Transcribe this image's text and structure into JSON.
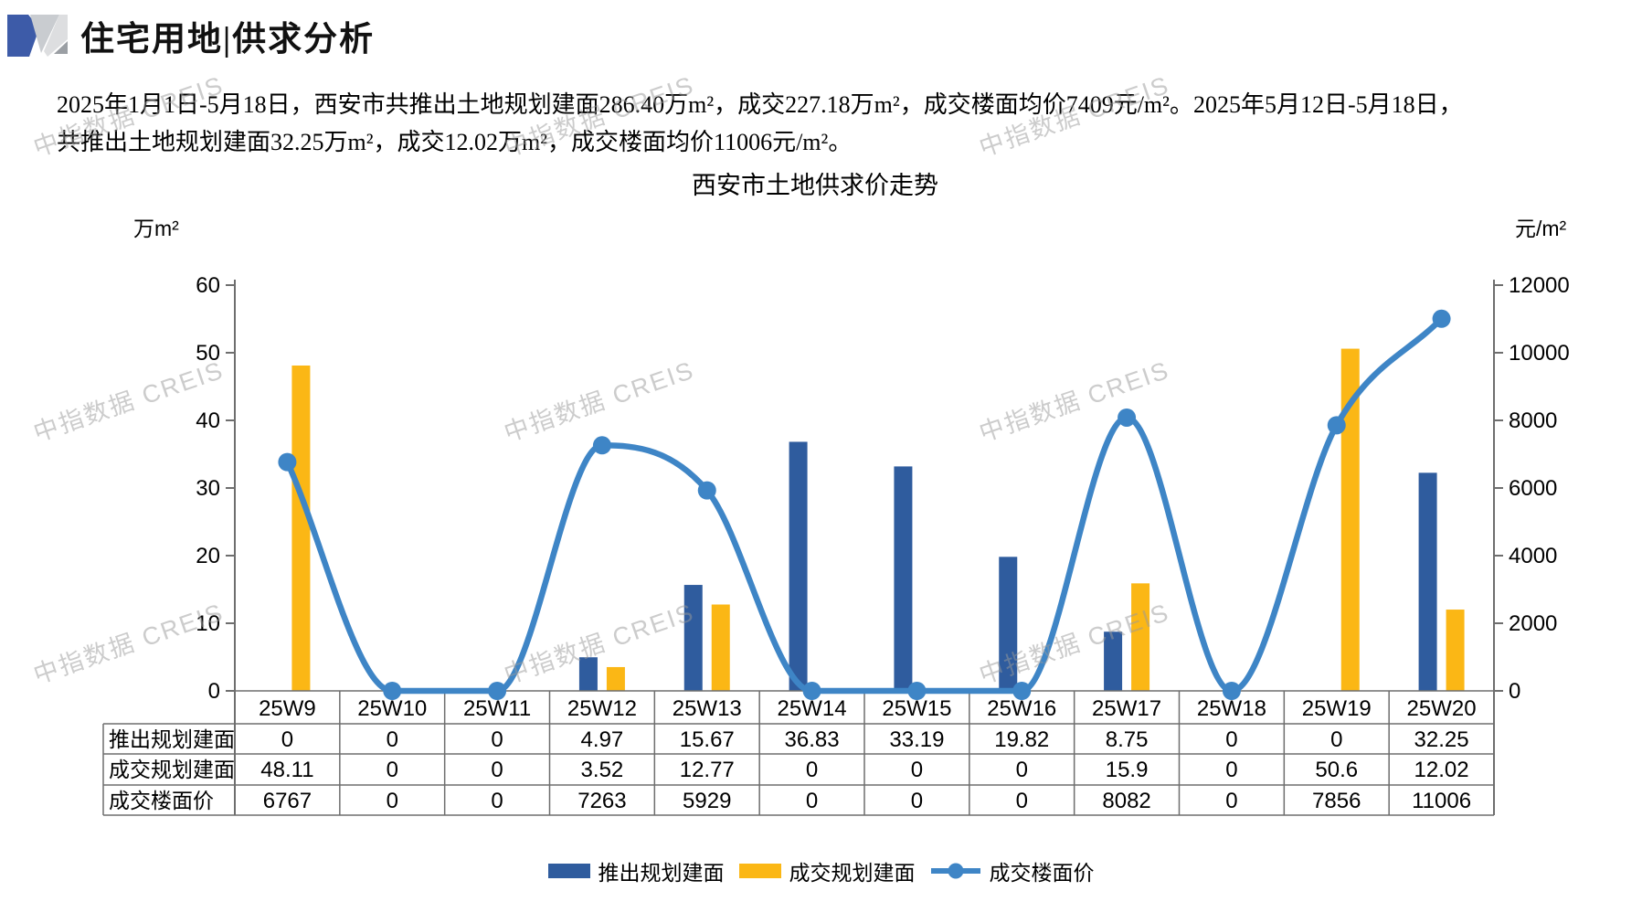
{
  "header": {
    "title": "住宅用地|供求分析"
  },
  "intro": {
    "line1": "2025年1月1日-5月18日，西安市共推出土地规划建面286.40万m²，成交227.18万m²，成交楼面均价7409元/m²。2025年5月12日-5月18日，",
    "line2": "共推出土地规划建面32.25万m²，成交12.02万m²，成交楼面均价11006元/m²。"
  },
  "watermark": {
    "text": "中指数据 CREIS"
  },
  "chart_data": {
    "type": "bar+line",
    "title": "西安市土地供求价走势",
    "categories": [
      "25W9",
      "25W10",
      "25W11",
      "25W12",
      "25W13",
      "25W14",
      "25W15",
      "25W16",
      "25W17",
      "25W18",
      "25W19",
      "25W20"
    ],
    "series": [
      {
        "name": "推出规划建面",
        "type": "bar",
        "axis": "left",
        "color": "#2F5C9E",
        "values": [
          "0",
          "0",
          "0",
          "4.97",
          "15.67",
          "36.83",
          "33.19",
          "19.82",
          "8.75",
          "0",
          "0",
          "32.25"
        ]
      },
      {
        "name": "成交规划建面",
        "type": "bar",
        "axis": "left",
        "color": "#FBB715",
        "values": [
          "48.11",
          "0",
          "0",
          "3.52",
          "12.77",
          "0",
          "0",
          "0",
          "15.9",
          "0",
          "50.6",
          "12.02"
        ]
      },
      {
        "name": "成交楼面价",
        "type": "line",
        "axis": "right",
        "color": "#3E85C6",
        "values": [
          "6767",
          "0",
          "0",
          "7263",
          "5929",
          "0",
          "0",
          "0",
          "8082",
          "0",
          "7856",
          "11006"
        ]
      }
    ],
    "left_axis": {
      "label": "万m²",
      "min": 0,
      "max": 60,
      "step": 10,
      "ticks": [
        "0",
        "10",
        "20",
        "30",
        "40",
        "50",
        "60"
      ]
    },
    "right_axis": {
      "label": "元/m²",
      "min": 0,
      "max": 12000,
      "step": 2000,
      "ticks": [
        "0",
        "2000",
        "4000",
        "6000",
        "8000",
        "10000",
        "12000"
      ]
    },
    "legend_position": "bottom",
    "grid": false,
    "data_table": true
  },
  "logo_colors": {
    "blue": "#3D5BA8",
    "light_gray": "#C9CCD0",
    "lighter_gray": "#DDDEE0",
    "dark_gray": "#9B9FA4"
  }
}
